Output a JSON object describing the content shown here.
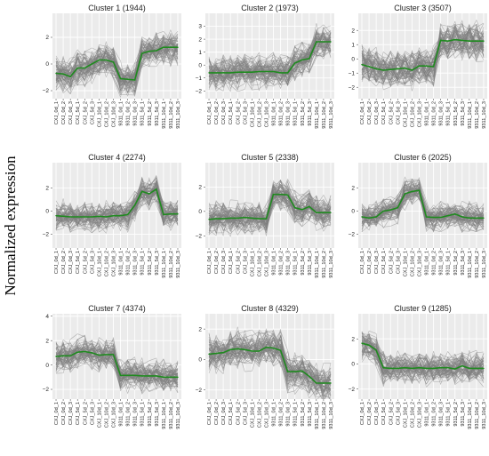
{
  "ylabel": "Normalized expression",
  "x_categories": [
    "CXJ_0d_1",
    "CXJ_0d_2",
    "CXJ_0d_3",
    "CXJ_5d_1",
    "CXJ_5d_2",
    "CXJ_5d_3",
    "CXJ_10d_1",
    "CXJ_10d_2",
    "CXJ_10d_3",
    "9311_0d_1",
    "9311_0d_2",
    "9311_0d_3",
    "9311_5d_1",
    "9311_5d_2",
    "9311_5d_3",
    "9311_10d_1",
    "9311_10d_2",
    "9311_10d_3"
  ],
  "colors": {
    "panel_bg": "#ebebeb",
    "grid": "#ffffff",
    "profiles": "#808080",
    "center_line": "#1f8a1f"
  },
  "chart_data": [
    {
      "type": "line",
      "title": "Cluster 1 (1944)",
      "ylim": [
        -2.6,
        3.8
      ],
      "yticks": [
        -2,
        0,
        2
      ],
      "values": [
        -0.7,
        -0.75,
        -0.95,
        -0.3,
        -0.3,
        0.0,
        0.3,
        0.3,
        0.15,
        -1.1,
        -1.15,
        -1.2,
        0.8,
        0.95,
        1.0,
        1.25,
        1.25,
        1.25
      ]
    },
    {
      "type": "line",
      "title": "Cluster 2 (1973)",
      "ylim": [
        -2.6,
        4.0
      ],
      "yticks": [
        -2,
        -1,
        0,
        1,
        2,
        3
      ],
      "values": [
        -0.6,
        -0.6,
        -0.6,
        -0.6,
        -0.55,
        -0.55,
        -0.55,
        -0.5,
        -0.5,
        -0.5,
        -0.6,
        -0.6,
        0.15,
        0.4,
        0.5,
        1.8,
        1.8,
        1.8
      ]
    },
    {
      "type": "line",
      "title": "Cluster 3 (3507)",
      "ylim": [
        -2.8,
        3.2
      ],
      "yticks": [
        -2,
        -1,
        0,
        1,
        2
      ],
      "values": [
        -0.4,
        -0.55,
        -0.7,
        -0.8,
        -0.75,
        -0.7,
        -0.65,
        -0.8,
        -0.5,
        -0.5,
        -0.55,
        1.3,
        1.25,
        1.35,
        1.3,
        1.25,
        1.25,
        1.25
      ]
    },
    {
      "type": "line",
      "title": "Cluster 4 (2274)",
      "ylim": [
        -3.2,
        4.2
      ],
      "yticks": [
        -2,
        0,
        2
      ],
      "values": [
        -0.4,
        -0.45,
        -0.5,
        -0.5,
        -0.5,
        -0.5,
        -0.45,
        -0.5,
        -0.4,
        -0.4,
        -0.3,
        0.5,
        1.7,
        1.5,
        1.9,
        -0.3,
        -0.25,
        -0.25
      ]
    },
    {
      "type": "line",
      "title": "Cluster 5 (2338)",
      "ylim": [
        -3.0,
        4.0
      ],
      "yticks": [
        -2,
        0,
        2
      ],
      "values": [
        -0.65,
        -0.6,
        -0.6,
        -0.55,
        -0.55,
        -0.5,
        -0.55,
        -0.6,
        -0.6,
        1.4,
        1.4,
        1.35,
        0.3,
        0.15,
        0.4,
        -0.1,
        -0.1,
        -0.1
      ]
    },
    {
      "type": "line",
      "title": "Cluster 6 (2025)",
      "ylim": [
        -3.2,
        4.2
      ],
      "yticks": [
        -2,
        0,
        2
      ],
      "values": [
        -0.5,
        -0.6,
        -0.5,
        0.0,
        0.1,
        0.3,
        1.5,
        1.7,
        1.8,
        -0.5,
        -0.55,
        -0.55,
        -0.4,
        -0.25,
        -0.5,
        -0.6,
        -0.6,
        -0.6
      ]
    },
    {
      "type": "line",
      "title": "Cluster 7 (4374)",
      "ylim": [
        -2.8,
        4.2
      ],
      "yticks": [
        -2,
        0,
        2,
        4
      ],
      "values": [
        0.7,
        0.75,
        0.75,
        1.05,
        1.1,
        1.0,
        0.8,
        0.85,
        0.85,
        -0.85,
        -0.85,
        -0.85,
        -0.9,
        -0.9,
        -0.9,
        -1.0,
        -1.0,
        -1.0
      ]
    },
    {
      "type": "line",
      "title": "Cluster 8 (4329)",
      "ylim": [
        -2.6,
        3.0
      ],
      "yticks": [
        -2,
        0,
        2
      ],
      "values": [
        0.35,
        0.4,
        0.45,
        0.65,
        0.7,
        0.65,
        0.55,
        0.55,
        0.8,
        0.75,
        0.6,
        -0.8,
        -0.8,
        -0.75,
        -1.1,
        -1.55,
        -1.55,
        -1.55
      ]
    },
    {
      "type": "line",
      "title": "Cluster 9 (1285)",
      "ylim": [
        -2.8,
        4.0
      ],
      "yticks": [
        -2,
        0,
        2
      ],
      "values": [
        1.65,
        1.5,
        1.1,
        -0.3,
        -0.35,
        -0.35,
        -0.3,
        -0.35,
        -0.3,
        -0.35,
        -0.35,
        -0.3,
        -0.3,
        -0.4,
        -0.15,
        -0.35,
        -0.35,
        -0.35
      ]
    }
  ]
}
